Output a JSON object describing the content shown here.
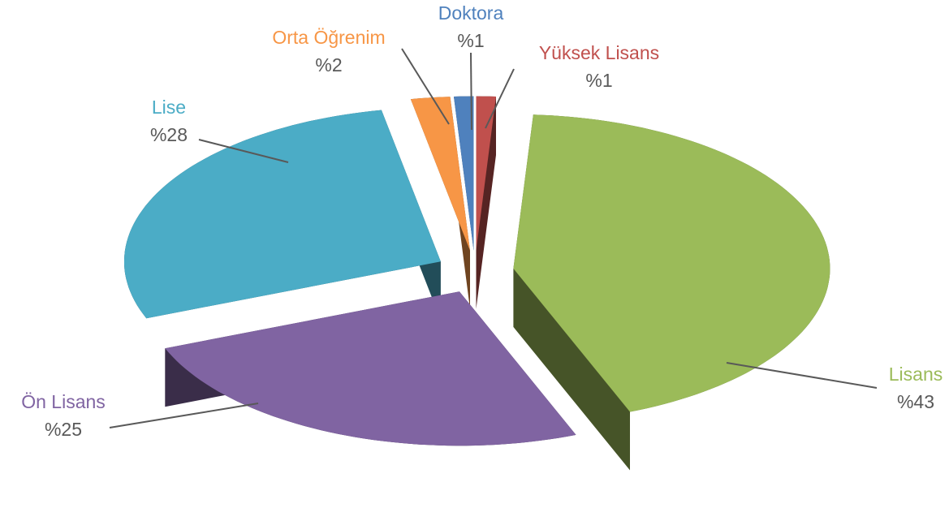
{
  "chart_data": {
    "type": "pie",
    "categories": [
      "Yüksek Lisans",
      "Lisans",
      "Ön Lisans",
      "Lise",
      "Orta Öğrenim",
      "Doktora"
    ],
    "values": [
      1,
      43,
      25,
      28,
      2,
      1
    ],
    "value_labels": [
      "%1",
      "%43",
      "%25",
      "%28",
      "%2",
      "%1"
    ],
    "colors": [
      "#c0504d",
      "#9bbb59",
      "#8064a2",
      "#4bacc6",
      "#f79646",
      "#4f81bd"
    ]
  }
}
